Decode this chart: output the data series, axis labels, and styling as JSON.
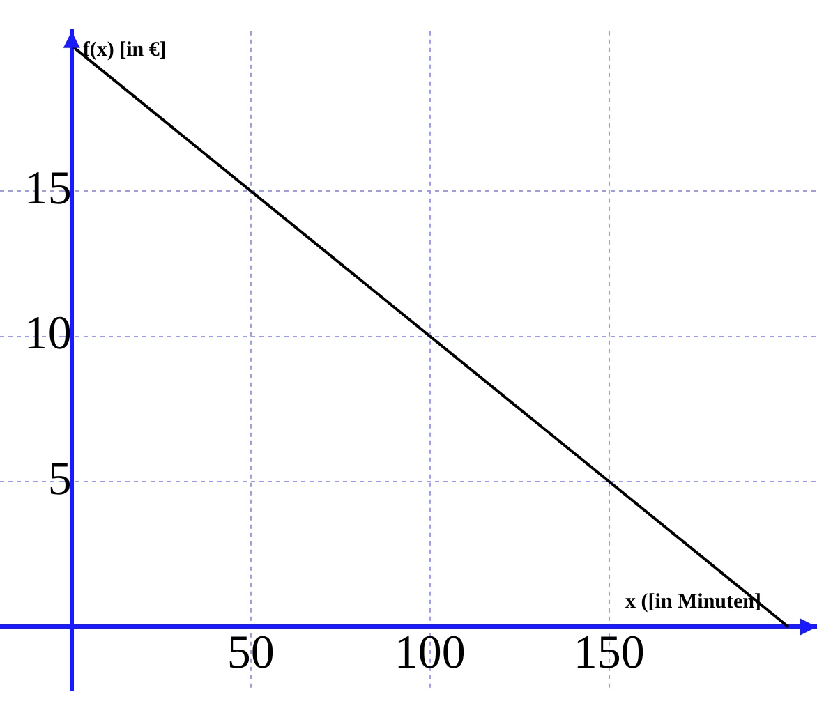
{
  "chart_data": {
    "type": "line",
    "xlabel": "x ([in Minuten]",
    "ylabel": "f(x) [in €]",
    "x": [
      0,
      200
    ],
    "series": [
      {
        "color": "#000000",
        "values": [
          20,
          0
        ]
      }
    ],
    "xlim": [
      -20,
      208
    ],
    "ylim": [
      -2.2,
      20.5
    ],
    "xticks": [
      50,
      100,
      150
    ],
    "yticks": [
      5,
      10,
      15
    ],
    "grid": true,
    "legend": false,
    "marker": "none",
    "line_style": "solid"
  }
}
